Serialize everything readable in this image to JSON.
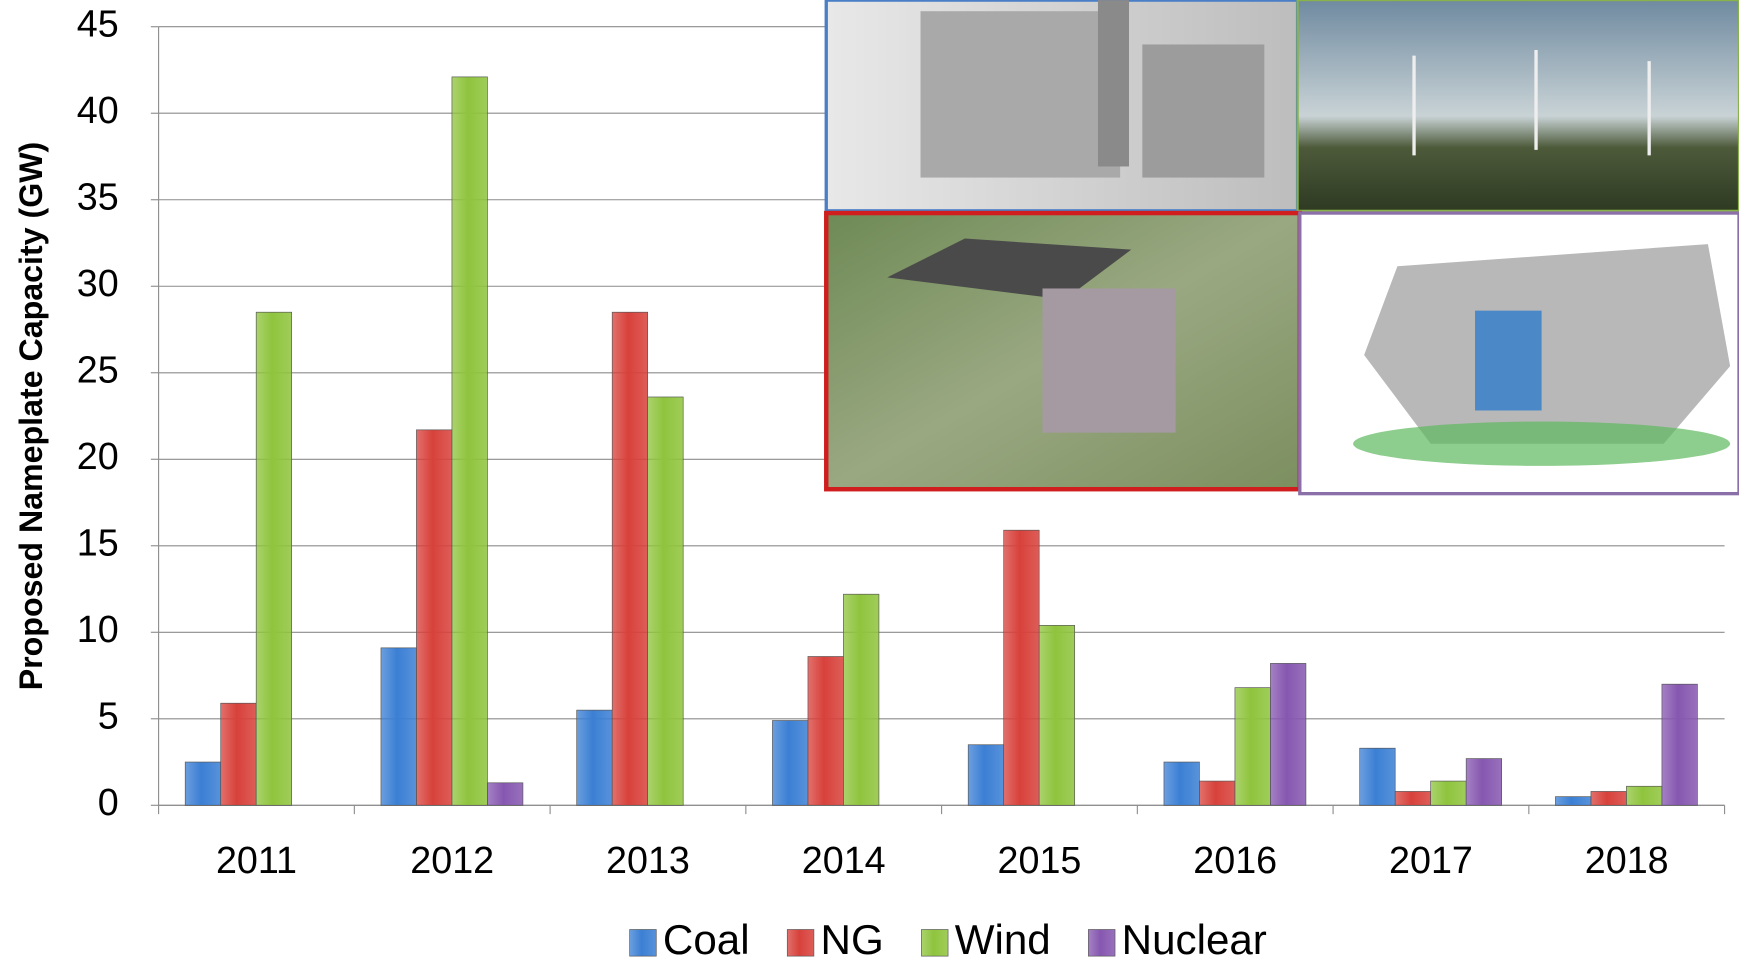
{
  "chart_data": {
    "type": "bar",
    "y_label": "Proposed Nameplate Capacity (GW)",
    "categories": [
      "2011",
      "2012",
      "2013",
      "2014",
      "2015",
      "2016",
      "2017",
      "2018"
    ],
    "series": [
      {
        "name": "Coal",
        "color": "#3b7fd4",
        "values": [
          2.5,
          9.1,
          5.5,
          4.9,
          3.5,
          2.5,
          3.3,
          0.5
        ]
      },
      {
        "name": "NG",
        "color": "#d8413b",
        "values": [
          5.9,
          21.7,
          28.5,
          8.6,
          15.9,
          1.4,
          0.8,
          0.8
        ]
      },
      {
        "name": "Wind",
        "color": "#8fc43d",
        "values": [
          28.5,
          42.1,
          23.6,
          12.2,
          10.4,
          6.8,
          1.4,
          1.1
        ]
      },
      {
        "name": "Nuclear",
        "color": "#8657b0",
        "values": [
          null,
          1.3,
          null,
          null,
          null,
          8.2,
          2.7,
          7.0
        ]
      }
    ],
    "ylim": [
      0,
      45
    ],
    "yticks": [
      0,
      5,
      10,
      15,
      20,
      25,
      30,
      35,
      40,
      45
    ],
    "grid": true,
    "legend": "bottom"
  }
}
